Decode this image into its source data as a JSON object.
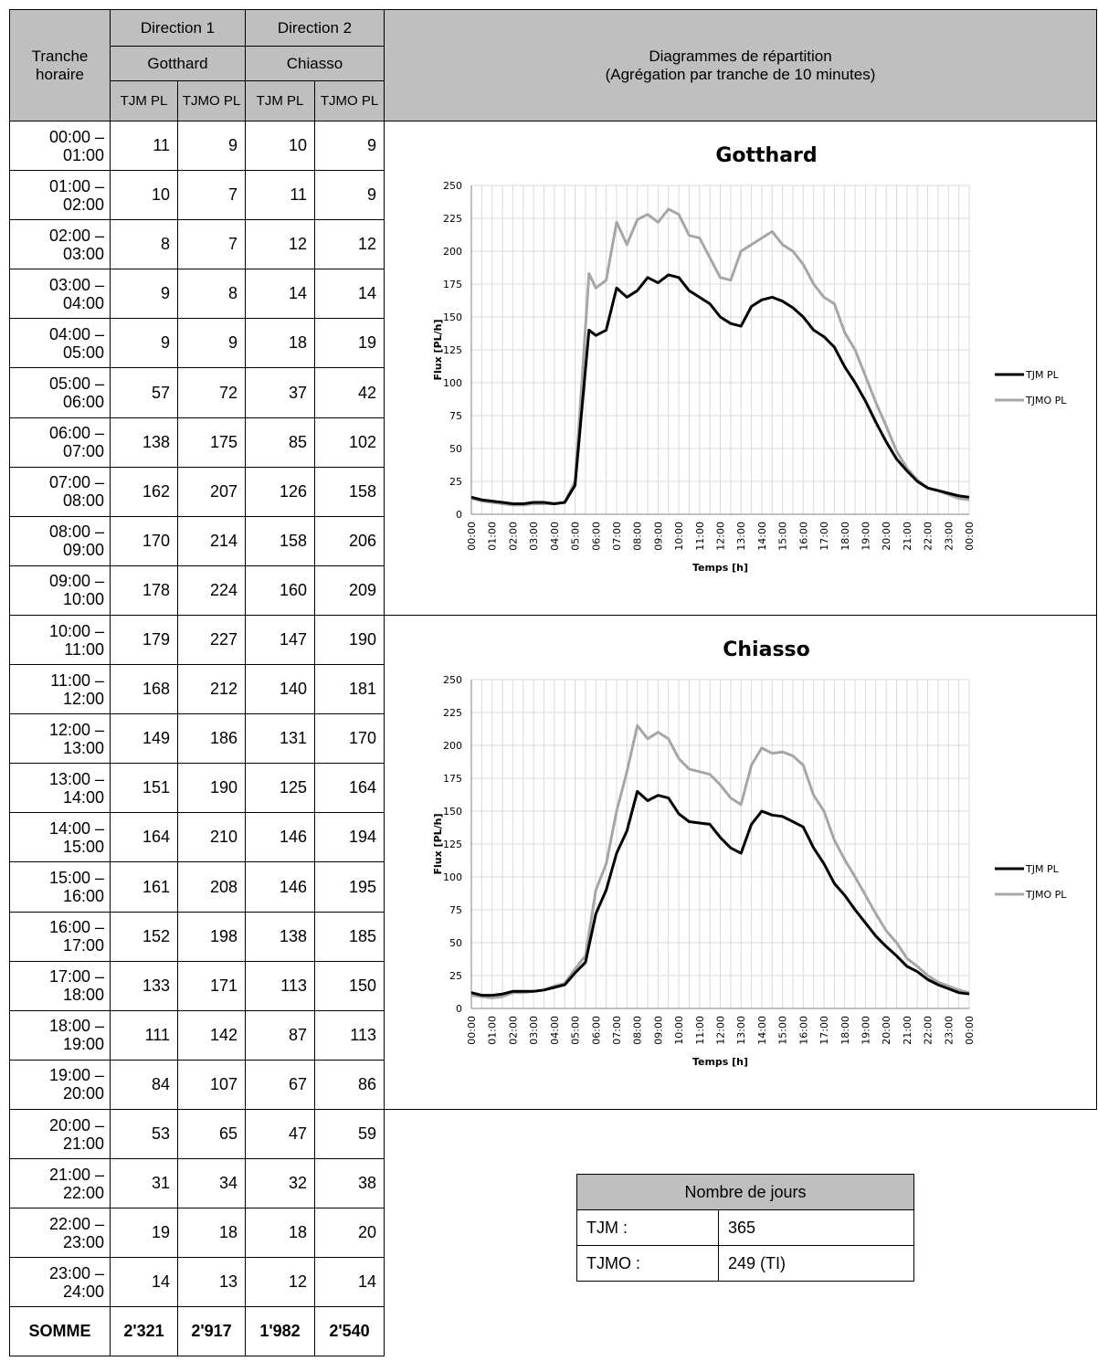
{
  "header": {
    "tranche": "Tranche horaire",
    "direction1": "Direction 1",
    "direction2": "Direction 2",
    "dest1": "Gotthard",
    "dest2": "Chiasso",
    "col_tjm": "TJM PL",
    "col_tjmo": "TJMO PL",
    "diagrams_line1": "Diagrammes de répartition",
    "diagrams_line2": "(Agrégation par tranche de 10 minutes)"
  },
  "rows": [
    {
      "slot": "00:00 – 01:00",
      "g_tjm": "11",
      "g_tjmo": "9",
      "c_tjm": "10",
      "c_tjmo": "9"
    },
    {
      "slot": "01:00 – 02:00",
      "g_tjm": "10",
      "g_tjmo": "7",
      "c_tjm": "11",
      "c_tjmo": "9"
    },
    {
      "slot": "02:00 – 03:00",
      "g_tjm": "8",
      "g_tjmo": "7",
      "c_tjm": "12",
      "c_tjmo": "12"
    },
    {
      "slot": "03:00 – 04:00",
      "g_tjm": "9",
      "g_tjmo": "8",
      "c_tjm": "14",
      "c_tjmo": "14"
    },
    {
      "slot": "04:00 – 05:00",
      "g_tjm": "9",
      "g_tjmo": "9",
      "c_tjm": "18",
      "c_tjmo": "19"
    },
    {
      "slot": "05:00 – 06:00",
      "g_tjm": "57",
      "g_tjmo": "72",
      "c_tjm": "37",
      "c_tjmo": "42"
    },
    {
      "slot": "06:00 – 07:00",
      "g_tjm": "138",
      "g_tjmo": "175",
      "c_tjm": "85",
      "c_tjmo": "102"
    },
    {
      "slot": "07:00 – 08:00",
      "g_tjm": "162",
      "g_tjmo": "207",
      "c_tjm": "126",
      "c_tjmo": "158"
    },
    {
      "slot": "08:00 – 09:00",
      "g_tjm": "170",
      "g_tjmo": "214",
      "c_tjm": "158",
      "c_tjmo": "206"
    },
    {
      "slot": "09:00 – 10:00",
      "g_tjm": "178",
      "g_tjmo": "224",
      "c_tjm": "160",
      "c_tjmo": "209"
    },
    {
      "slot": "10:00 – 11:00",
      "g_tjm": "179",
      "g_tjmo": "227",
      "c_tjm": "147",
      "c_tjmo": "190"
    },
    {
      "slot": "11:00 – 12:00",
      "g_tjm": "168",
      "g_tjmo": "212",
      "c_tjm": "140",
      "c_tjmo": "181"
    },
    {
      "slot": "12:00 – 13:00",
      "g_tjm": "149",
      "g_tjmo": "186",
      "c_tjm": "131",
      "c_tjmo": "170"
    },
    {
      "slot": "13:00 – 14:00",
      "g_tjm": "151",
      "g_tjmo": "190",
      "c_tjm": "125",
      "c_tjmo": "164"
    },
    {
      "slot": "14:00 – 15:00",
      "g_tjm": "164",
      "g_tjmo": "210",
      "c_tjm": "146",
      "c_tjmo": "194"
    },
    {
      "slot": "15:00 – 16:00",
      "g_tjm": "161",
      "g_tjmo": "208",
      "c_tjm": "146",
      "c_tjmo": "195"
    },
    {
      "slot": "16:00 – 17:00",
      "g_tjm": "152",
      "g_tjmo": "198",
      "c_tjm": "138",
      "c_tjmo": "185"
    },
    {
      "slot": "17:00 – 18:00",
      "g_tjm": "133",
      "g_tjmo": "171",
      "c_tjm": "113",
      "c_tjmo": "150"
    },
    {
      "slot": "18:00 – 19:00",
      "g_tjm": "111",
      "g_tjmo": "142",
      "c_tjm": "87",
      "c_tjmo": "113"
    },
    {
      "slot": "19:00 – 20:00",
      "g_tjm": "84",
      "g_tjmo": "107",
      "c_tjm": "67",
      "c_tjmo": "86"
    },
    {
      "slot": "20:00 – 21:00",
      "g_tjm": "53",
      "g_tjmo": "65",
      "c_tjm": "47",
      "c_tjmo": "59"
    },
    {
      "slot": "21:00 – 22:00",
      "g_tjm": "31",
      "g_tjmo": "34",
      "c_tjm": "32",
      "c_tjmo": "38"
    },
    {
      "slot": "22:00 – 23:00",
      "g_tjm": "19",
      "g_tjmo": "18",
      "c_tjm": "18",
      "c_tjmo": "20"
    },
    {
      "slot": "23:00 – 24:00",
      "g_tjm": "14",
      "g_tjmo": "13",
      "c_tjm": "12",
      "c_tjmo": "14"
    }
  ],
  "totals": {
    "label": "SOMME",
    "g_tjm": "2'321",
    "g_tjmo": "2'917",
    "c_tjm": "1'982",
    "c_tjmo": "2'540"
  },
  "days_table": {
    "title": "Nombre de jours",
    "tjm_label": "TJM :",
    "tjm_value": "365",
    "tjmo_label": "TJMO :",
    "tjmo_value": "249 (TI)"
  },
  "colors": {
    "tjm": "#000000",
    "tjmo": "#a6a6a6",
    "grid": "#d9d9d9"
  },
  "chart_data": [
    {
      "type": "line",
      "title": "Gotthard",
      "xlabel": "Temps [h]",
      "ylabel": "Flux [PL/h]",
      "ylim": [
        0,
        250
      ],
      "yticks": [
        0,
        25,
        50,
        75,
        100,
        125,
        150,
        175,
        200,
        225,
        250
      ],
      "xticks": [
        "00:00",
        "01:00",
        "02:00",
        "03:00",
        "04:00",
        "05:00",
        "06:00",
        "07:00",
        "08:00",
        "09:00",
        "10:00",
        "11:00",
        "12:00",
        "13:00",
        "14:00",
        "15:00",
        "16:00",
        "17:00",
        "18:00",
        "19:00",
        "20:00",
        "21:00",
        "22:00",
        "23:00",
        "00:00"
      ],
      "legend": "right",
      "series": [
        {
          "name": "TJM PL",
          "x_hours": [
            0,
            0.5,
            1,
            1.5,
            2,
            2.5,
            3,
            3.5,
            4,
            4.5,
            5,
            5.33,
            5.67,
            6,
            6.5,
            7,
            7.5,
            8,
            8.5,
            9,
            9.5,
            10,
            10.5,
            11,
            11.5,
            12,
            12.5,
            13,
            13.5,
            14,
            14.5,
            15,
            15.5,
            16,
            16.5,
            17,
            17.5,
            18,
            18.5,
            19,
            19.5,
            20,
            20.5,
            21,
            21.5,
            22,
            22.5,
            23,
            23.5,
            24
          ],
          "values": [
            13,
            11,
            10,
            9,
            8,
            8,
            9,
            9,
            8,
            9,
            22,
            80,
            140,
            136,
            140,
            172,
            165,
            170,
            180,
            176,
            182,
            180,
            170,
            165,
            160,
            150,
            145,
            143,
            158,
            163,
            165,
            162,
            157,
            150,
            140,
            135,
            127,
            112,
            100,
            86,
            70,
            55,
            42,
            33,
            25,
            20,
            18,
            16,
            14,
            13
          ]
        },
        {
          "name": "TJMO PL",
          "x_hours": [
            0,
            0.5,
            1,
            1.5,
            2,
            2.5,
            3,
            3.5,
            4,
            4.5,
            5,
            5.33,
            5.67,
            6,
            6.5,
            7,
            7.5,
            8,
            8.5,
            9,
            9.5,
            10,
            10.5,
            11,
            11.5,
            12,
            12.5,
            13,
            13.5,
            14,
            14.5,
            15,
            15.5,
            16,
            16.5,
            17,
            17.5,
            18,
            18.5,
            19,
            19.5,
            20,
            20.5,
            21,
            21.5,
            22,
            22.5,
            23,
            23.5,
            24
          ],
          "values": [
            12,
            10,
            9,
            8,
            7,
            7,
            8,
            8,
            8,
            9,
            25,
            100,
            183,
            172,
            178,
            222,
            205,
            224,
            228,
            222,
            232,
            228,
            212,
            210,
            195,
            180,
            178,
            200,
            205,
            210,
            215,
            205,
            200,
            190,
            175,
            165,
            160,
            138,
            125,
            105,
            85,
            67,
            48,
            35,
            26,
            20,
            18,
            15,
            12,
            11
          ]
        }
      ]
    },
    {
      "type": "line",
      "title": "Chiasso",
      "xlabel": "Temps [h]",
      "ylabel": "Flux [PL/h]",
      "ylim": [
        0,
        250
      ],
      "yticks": [
        0,
        25,
        50,
        75,
        100,
        125,
        150,
        175,
        200,
        225,
        250
      ],
      "xticks": [
        "00:00",
        "01:00",
        "02:00",
        "03:00",
        "04:00",
        "05:00",
        "06:00",
        "07:00",
        "08:00",
        "09:00",
        "10:00",
        "11:00",
        "12:00",
        "13:00",
        "14:00",
        "15:00",
        "16:00",
        "17:00",
        "18:00",
        "19:00",
        "20:00",
        "21:00",
        "22:00",
        "23:00",
        "00:00"
      ],
      "legend": "right",
      "series": [
        {
          "name": "TJM PL",
          "x_hours": [
            0,
            0.5,
            1,
            1.5,
            2,
            2.5,
            3,
            3.5,
            4,
            4.5,
            5,
            5.5,
            6,
            6.5,
            7,
            7.5,
            8,
            8.5,
            9,
            9.5,
            10,
            10.5,
            11,
            11.5,
            12,
            12.5,
            13,
            13.5,
            14,
            14.5,
            15,
            15.5,
            16,
            16.5,
            17,
            17.5,
            18,
            18.5,
            19,
            19.5,
            20,
            20.5,
            21,
            21.5,
            22,
            22.5,
            23,
            23.5,
            24
          ],
          "values": [
            12,
            10,
            10,
            11,
            13,
            13,
            13,
            14,
            16,
            18,
            27,
            35,
            72,
            90,
            118,
            135,
            165,
            158,
            162,
            160,
            148,
            142,
            141,
            140,
            130,
            122,
            118,
            140,
            150,
            147,
            146,
            142,
            138,
            122,
            110,
            95,
            86,
            75,
            65,
            55,
            47,
            40,
            32,
            28,
            22,
            18,
            15,
            12,
            11
          ]
        },
        {
          "name": "TJMO PL",
          "x_hours": [
            0,
            0.5,
            1,
            1.5,
            2,
            2.5,
            3,
            3.5,
            4,
            4.5,
            5,
            5.5,
            6,
            6.5,
            7,
            7.5,
            8,
            8.5,
            9,
            9.5,
            10,
            10.5,
            11,
            11.5,
            12,
            12.5,
            13,
            13.5,
            14,
            14.5,
            15,
            15.5,
            16,
            16.5,
            17,
            17.5,
            18,
            18.5,
            19,
            19.5,
            20,
            20.5,
            21,
            21.5,
            22,
            22.5,
            23,
            23.5,
            24
          ],
          "values": [
            10,
            9,
            8,
            9,
            12,
            12,
            13,
            14,
            17,
            19,
            30,
            40,
            90,
            110,
            150,
            180,
            215,
            205,
            210,
            205,
            190,
            182,
            180,
            178,
            170,
            160,
            155,
            185,
            198,
            194,
            195,
            192,
            185,
            162,
            150,
            128,
            113,
            100,
            86,
            72,
            59,
            50,
            38,
            32,
            25,
            20,
            17,
            14,
            12
          ]
        }
      ]
    }
  ]
}
